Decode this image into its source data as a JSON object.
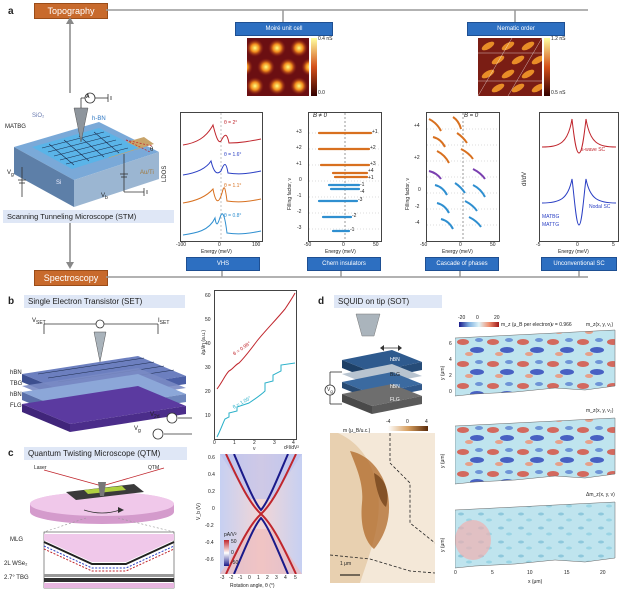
{
  "panel_a": {
    "letter": "a",
    "topography": "Topography",
    "spectroscopy": "Spectroscopy",
    "stm_caption": "Scanning Tunneling Microscope (STM)",
    "moire_title": "Moiré unit cell",
    "nematic_title": "Nematic order",
    "device_labels": {
      "matbg": "MATBG",
      "sio2": "SiO₂",
      "hbn": "h-BN",
      "auti": "Au/Ti",
      "si": "Si",
      "theta": "θ",
      "vg": "V",
      "vg_sub": "g",
      "vb": "V",
      "vb_sub": "b",
      "ammeter": "A"
    },
    "vhs": {
      "ylabel": "LDOS",
      "xlabel": "Energy (meV)",
      "xticks": [
        "-100",
        "0",
        "100"
      ],
      "curves": [
        {
          "label": "θ = 2°",
          "color": "#c0262d"
        },
        {
          "label": "θ = 1.6°",
          "color": "#2a3fc4"
        },
        {
          "label": "θ = 1.1°",
          "color": "#d8701f"
        },
        {
          "label": "θ = 0.8°",
          "color": "#2f8fd0"
        }
      ],
      "button": "VHS"
    },
    "chern": {
      "header": "B ≠ 0",
      "ylabel": "Filling factor, ν",
      "xlabel": "Energy (meV)",
      "xticks": [
        "-50",
        "0",
        "50"
      ],
      "yticks": [
        "+3",
        "+2",
        "+1",
        "0",
        "-1",
        "-2",
        "-3"
      ],
      "right_labels": [
        "+1",
        "+2",
        "+3",
        "+4",
        "+1",
        "-1",
        "-4",
        "-3",
        "-2",
        "-1"
      ],
      "button": "Chern insulators"
    },
    "cascade": {
      "header": "B = 0",
      "ylabel": "Filling factor, ν",
      "xlabel": "Energy (meV)",
      "xticks": [
        "-50",
        "0",
        "50"
      ],
      "yticks": [
        "+4",
        "+2",
        "0",
        "-2",
        "-4"
      ],
      "button": "Cascade of phases"
    },
    "usc": {
      "ylabel": "dI/dV",
      "xlabel": "Energy (meV)",
      "xticks": [
        "-5",
        "0",
        "5"
      ],
      "s_wave": "s-wave SC",
      "nodal": "Nodal SC",
      "matbg": "MATBG",
      "mattg": "MATTG",
      "button": "Unconventional SC"
    },
    "moire_scale": {
      "top": "0.4 nS",
      "bottom": "0.0"
    },
    "nematic_scale": {
      "top": "1.2 nS",
      "bottom": "0.5 nS"
    }
  },
  "panel_b": {
    "letter": "b",
    "title": "Single Electron Transistor (SET)",
    "vset": "V",
    "vset_sub": "SET",
    "iset": "I",
    "iset_sub": "SET",
    "layers": [
      "hBN",
      "TBG",
      "hBN",
      "FLG"
    ],
    "v2d": "V",
    "v2d_sub": "2d",
    "vg": "V",
    "vg_sub": "g",
    "plot": {
      "ylabel": "∂μ/∂n (a.u.)",
      "xlabel": "ν",
      "xticks": [
        "0",
        "1",
        "2",
        "3",
        "4"
      ],
      "yticks": [
        "10",
        "20",
        "30",
        "40",
        "50",
        "60"
      ],
      "red_label": "θ = 0.98°",
      "cyan_label": "θ = 1.05°"
    }
  },
  "panel_c": {
    "letter": "c",
    "title": "Quantum Twisting Microscope (QTM)",
    "laser": "Laser",
    "qtm": "QTM",
    "layers": [
      "MLG",
      "2L WSe₂",
      "2.7° TBG"
    ],
    "map": {
      "title": "d²I/dV²",
      "ylabel": "V_b (V)",
      "xlabel": "Rotation angle, θ (°)",
      "xticks": [
        "-3",
        "-2",
        "-1",
        "0",
        "1",
        "2",
        "3",
        "4",
        "5"
      ],
      "yticks": [
        "0.6",
        "0.4",
        "0.2",
        "0",
        "-0.2",
        "-0.4",
        "-0.6"
      ],
      "cbar_unit": "pA/V²",
      "cbar_ticks": [
        "50",
        "0",
        "-50"
      ]
    }
  },
  "panel_d": {
    "letter": "d",
    "title": "SQUID on tip (SOT)",
    "layers": [
      "hBN",
      "BLG",
      "hBN",
      "FLG"
    ],
    "vg": "V",
    "vg_sub": "g",
    "m_label": "m (μ_B/u.c.)",
    "m_ticks": [
      "-4",
      "0",
      "4"
    ],
    "scalebar": "1 μm",
    "maps": [
      {
        "title": "m_z(x, y, ν₁)",
        "cbar_label": "m_z (μ_B per electron)",
        "nu": "ν = 0.966",
        "cbar_ticks": [
          "-20",
          "0",
          "20"
        ]
      },
      {
        "title": "m_z(x, y, ν₂)"
      },
      {
        "title": "Δm_z(x, y, ν)"
      }
    ],
    "yaxis": "y (μm)",
    "xaxis": "x (μm)",
    "xticks": [
      "0",
      "5",
      "10",
      "15",
      "20"
    ],
    "yticks": [
      "0",
      "2",
      "4",
      "6"
    ]
  }
}
